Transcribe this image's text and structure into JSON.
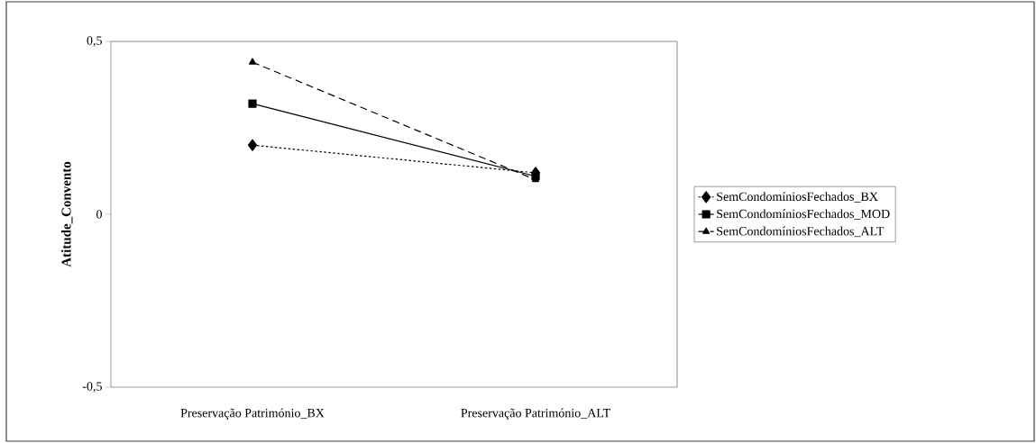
{
  "chart_data": {
    "type": "line",
    "ylabel": "Atitude_Convento",
    "categories": [
      "Preservação Património_BX",
      "Preservação Património_ALT"
    ],
    "series": [
      {
        "name": "SemCondomíniosFechados_BX",
        "color": "#000000",
        "values": [
          0.2,
          0.12
        ],
        "marker": "diamond",
        "line_style": "dotted"
      },
      {
        "name": "SemCondomíniosFechados_MOD",
        "color": "#000000",
        "values": [
          0.32,
          0.11
        ],
        "marker": "square",
        "line_style": "solid"
      },
      {
        "name": "SemCondomíniosFechados_ALT",
        "color": "#000000",
        "values": [
          0.44,
          0.1
        ],
        "marker": "triangle",
        "line_style": "dashed"
      }
    ],
    "ylim": [
      -0.5,
      0.5
    ],
    "yticks": [
      {
        "value": -0.5,
        "label": "-0,5"
      },
      0,
      {
        "value": 0.5,
        "label": "0,5"
      }
    ],
    "grid": false,
    "legend": "right"
  }
}
